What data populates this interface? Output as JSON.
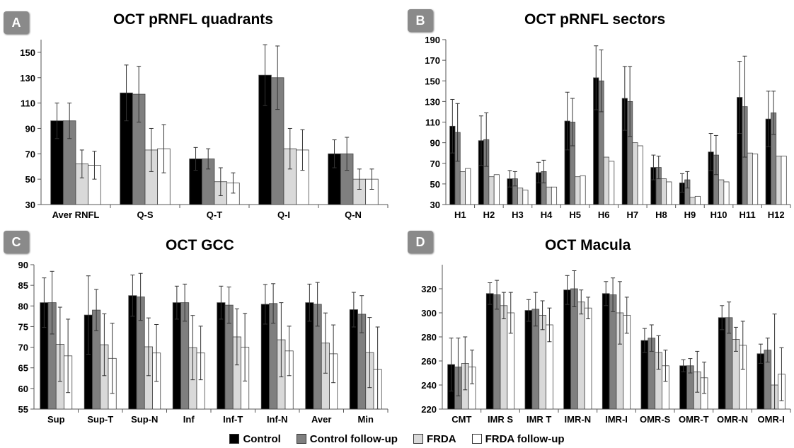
{
  "colors": {
    "control": "#000000",
    "control_followup": "#7f7f7f",
    "frda": "#d9d9d9",
    "frda_followup": "#ffffff"
  },
  "legend": [
    {
      "label": "Control",
      "color": "#000000"
    },
    {
      "label": "Control follow-up",
      "color": "#7f7f7f"
    },
    {
      "label": "FRDA",
      "color": "#d9d9d9"
    },
    {
      "label": "FRDA follow-up",
      "color": "#ffffff"
    }
  ],
  "chart_data": [
    {
      "type": "bar",
      "badge": "A",
      "title": "OCT pRNFL quadrants",
      "categories": [
        "Aver RNFL",
        "Q-S",
        "Q-T",
        "Q-I",
        "Q-N"
      ],
      "ylim": [
        30,
        160
      ],
      "yticks": [
        30,
        50,
        70,
        90,
        110,
        130,
        150
      ],
      "series": [
        {
          "name": "Control",
          "values": [
            96,
            118,
            66,
            132,
            70
          ],
          "errors": [
            14,
            22,
            9,
            24,
            11
          ]
        },
        {
          "name": "Control follow-up",
          "values": [
            96,
            117,
            66,
            130,
            70
          ],
          "errors": [
            14,
            22,
            8,
            25,
            13
          ]
        },
        {
          "name": "FRDA",
          "values": [
            62,
            73,
            48,
            74,
            50
          ],
          "errors": [
            11,
            17,
            11,
            16,
            8
          ]
        },
        {
          "name": "FRDA follow-up",
          "values": [
            61,
            74,
            47,
            73,
            50
          ],
          "errors": [
            11,
            19,
            8,
            16,
            8
          ]
        }
      ]
    },
    {
      "type": "bar",
      "badge": "B",
      "title": "OCT pRNFL sectors",
      "categories": [
        "H1",
        "H2",
        "H3",
        "H4",
        "H5",
        "H6",
        "H7",
        "H8",
        "H9",
        "H10",
        "H11",
        "H12"
      ],
      "ylim": [
        30,
        190
      ],
      "yticks": [
        30,
        50,
        70,
        90,
        110,
        130,
        150,
        170,
        190
      ],
      "series": [
        {
          "name": "Control",
          "values": [
            106,
            92,
            55,
            61,
            111,
            153,
            133,
            66,
            51,
            81,
            134,
            113
          ],
          "errors": [
            26,
            24,
            8,
            10,
            28,
            31,
            31,
            12,
            9,
            18,
            35,
            27
          ]
        },
        {
          "name": "Control follow-up",
          "values": [
            100,
            93,
            55,
            62,
            110,
            150,
            130,
            66,
            54,
            78,
            125,
            119
          ],
          "errors": [
            28,
            26,
            7,
            11,
            23,
            30,
            34,
            11,
            8,
            19,
            49,
            21
          ]
        },
        {
          "name": "FRDA",
          "values": [
            62,
            57,
            46,
            47,
            57,
            76,
            90,
            55,
            37,
            54,
            80,
            77
          ]
        },
        {
          "name": "FRDA follow-up",
          "values": [
            65,
            59,
            44,
            47,
            58,
            72,
            87,
            52,
            38,
            52,
            79,
            77
          ]
        }
      ]
    },
    {
      "type": "bar",
      "badge": "C",
      "title": "OCT GCC",
      "categories": [
        "Sup",
        "Sup-T",
        "Sup-N",
        "Inf",
        "Inf-T",
        "Inf-N",
        "Aver",
        "Min"
      ],
      "ylim": [
        55,
        90
      ],
      "yticks": [
        55,
        60,
        65,
        70,
        75,
        80,
        85,
        90
      ],
      "series": [
        {
          "name": "Control",
          "values": [
            80.8,
            77.8,
            82.5,
            80.8,
            80.8,
            80.4,
            80.8,
            79.1
          ],
          "errors": [
            6,
            9.5,
            5,
            4,
            4,
            4.8,
            4.5,
            4.2
          ]
        },
        {
          "name": "Control follow-up",
          "values": [
            80.8,
            79,
            82.2,
            80.8,
            80.2,
            80.6,
            80.4,
            78
          ],
          "errors": [
            7.6,
            5,
            5.7,
            4.5,
            4.4,
            4.8,
            5.3,
            4.5
          ]
        },
        {
          "name": "FRDA",
          "values": [
            70.7,
            70.6,
            70.1,
            69.9,
            72.5,
            71.8,
            71,
            68.7
          ],
          "errors": [
            9,
            7.5,
            7,
            7.8,
            6.8,
            9,
            7.3,
            8.5
          ]
        },
        {
          "name": "FRDA follow-up",
          "values": [
            67.9,
            67.3,
            68.6,
            68.6,
            70,
            69.1,
            68.4,
            64.6
          ],
          "errors": [
            8.9,
            8.5,
            6.9,
            6.5,
            8.2,
            6,
            7,
            10.3
          ]
        }
      ]
    },
    {
      "type": "bar",
      "badge": "D",
      "title": "OCT Macula",
      "categories": [
        "CMT",
        "IMR S",
        "IMR T",
        "IMR-N",
        "IMR-I",
        "OMR-S",
        "OMR-T",
        "OMR-N",
        "OMR-I"
      ],
      "ylim": [
        220,
        340
      ],
      "yticks": [
        220,
        240,
        260,
        280,
        300,
        320
      ],
      "series": [
        {
          "name": "Control",
          "values": [
            257,
            316,
            302,
            319,
            316,
            277,
            256,
            296,
            266
          ],
          "errors": [
            22,
            9,
            9,
            12,
            10,
            10,
            5,
            10,
            8
          ]
        },
        {
          "name": "Control follow-up",
          "values": [
            255,
            315,
            303,
            320,
            315,
            279,
            256,
            296,
            269
          ],
          "errors": [
            24,
            12,
            14,
            15,
            14,
            11,
            6,
            13,
            10
          ]
        },
        {
          "name": "FRDA",
          "values": [
            258,
            306,
            298,
            309,
            300,
            267,
            251,
            278,
            240
          ],
          "errors": [
            22,
            11,
            12,
            10,
            26,
            14,
            17,
            10,
            59
          ]
        },
        {
          "name": "FRDA follow-up",
          "values": [
            255,
            300,
            290,
            304,
            298,
            256,
            246,
            273,
            249
          ],
          "errors": [
            14,
            17,
            14,
            9,
            15,
            13,
            13,
            20,
            22
          ]
        }
      ]
    }
  ]
}
